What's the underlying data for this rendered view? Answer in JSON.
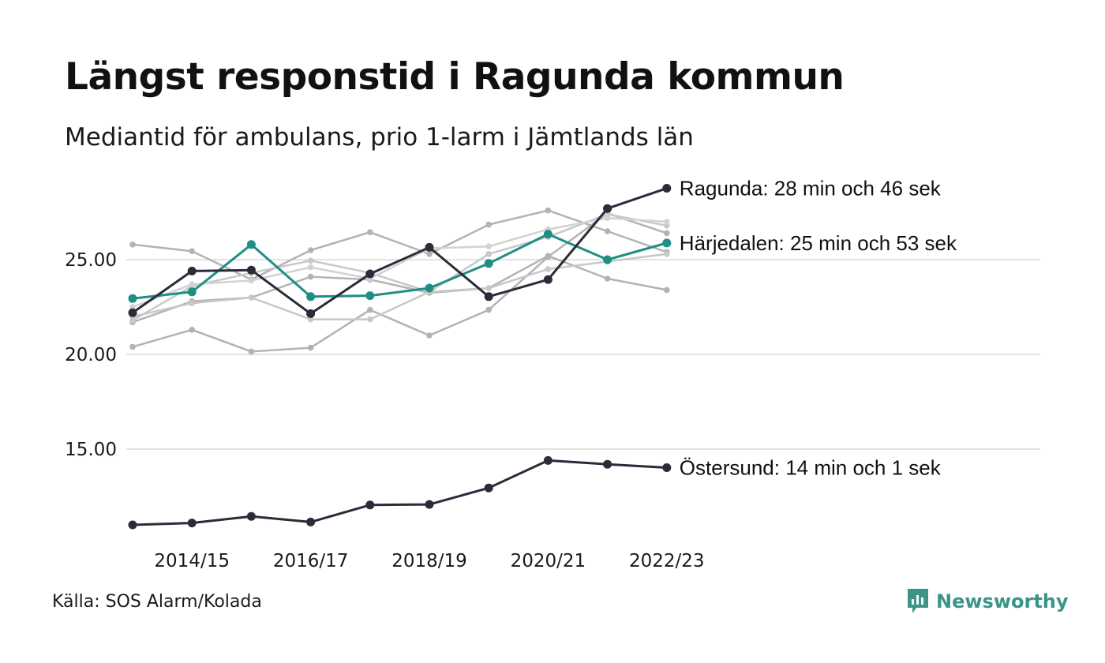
{
  "title": "Längst responstid i Ragunda kommun",
  "subtitle": "Mediantid för ambulans, prio 1-larm i Jämtlands län",
  "source": "Källa: SOS Alarm/Kolada",
  "brand": {
    "name": "Newsworthy",
    "icon": "newsworthy-logo-icon",
    "color": "#3a9488"
  },
  "chart_data": {
    "type": "line",
    "x": [
      "2013/14",
      "2014/15",
      "2015/16",
      "2016/17",
      "2017/18",
      "2018/19",
      "2019/20",
      "2020/21",
      "2021/22",
      "2022/23"
    ],
    "x_tick_labels": [
      "2014/15",
      "2016/17",
      "2018/19",
      "2020/21",
      "2022/23"
    ],
    "y_ticks": [
      "15.00",
      "20.00",
      "25.00"
    ],
    "ylim": [
      10.5,
      29.5
    ],
    "grid": "horizontal",
    "legend": "none",
    "series": [
      {
        "name": "",
        "role": "background",
        "color": "#b3b3b3",
        "values": [
          25.8,
          25.45,
          23.95,
          25.5,
          26.45,
          25.3,
          26.85,
          27.6,
          26.5,
          25.4
        ]
      },
      {
        "name": "",
        "role": "background",
        "color": "#b3b3b3",
        "values": [
          21.7,
          22.8,
          23.0,
          24.1,
          23.95,
          23.25,
          23.5,
          25.2,
          24.0,
          23.4
        ]
      },
      {
        "name": "",
        "role": "background",
        "color": "#b3b3b3",
        "values": [
          20.4,
          21.3,
          20.15,
          20.35,
          22.35,
          21.0,
          22.35,
          25.15,
          27.45,
          26.4
        ]
      },
      {
        "name": "",
        "role": "background",
        "color": "#c8c8c8",
        "values": [
          21.8,
          23.6,
          24.3,
          24.95,
          24.3,
          23.3,
          25.3,
          26.2,
          27.4,
          26.8
        ]
      },
      {
        "name": "",
        "role": "background",
        "color": "#c8c8c8",
        "values": [
          22.0,
          22.7,
          23.0,
          21.85,
          21.85,
          23.3,
          23.5,
          24.5,
          24.9,
          25.3
        ]
      },
      {
        "name": "",
        "role": "background",
        "color": "#d2d2d2",
        "values": [
          22.5,
          23.7,
          23.9,
          24.6,
          24.0,
          25.6,
          25.7,
          26.6,
          27.2,
          27.0
        ]
      },
      {
        "name": "Härjedalen",
        "role": "highlight",
        "color": "#1f8f85",
        "values": [
          22.95,
          23.3,
          25.8,
          23.05,
          23.1,
          23.5,
          24.8,
          26.35,
          25.0,
          25.88
        ],
        "label": "Härjedalen: 25 min och 53 sek"
      },
      {
        "name": "Ragunda",
        "role": "highlight",
        "color": "#2b2b3a",
        "values": [
          22.2,
          24.4,
          24.45,
          22.15,
          24.25,
          25.65,
          23.05,
          23.95,
          27.7,
          28.77
        ],
        "label": "Ragunda: 28 min och 46 sek"
      },
      {
        "name": "Östersund",
        "role": "highlight",
        "color": "#2b2b3a",
        "values": [
          11.0,
          11.1,
          11.45,
          11.15,
          12.05,
          12.08,
          12.95,
          14.4,
          14.2,
          14.02
        ],
        "label": "Östersund: 14 min och 1 sek"
      }
    ]
  }
}
